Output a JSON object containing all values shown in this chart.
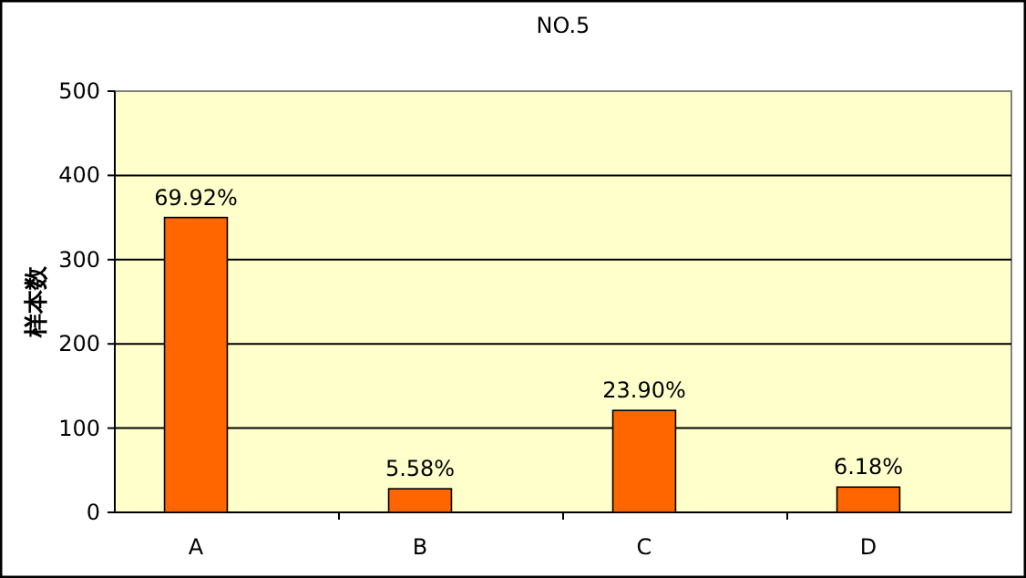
{
  "chart_data": {
    "type": "bar",
    "title": "NO.5",
    "ylabel": "样本数",
    "categories": [
      "A",
      "B",
      "C",
      "D"
    ],
    "values": [
      350,
      28,
      121,
      30
    ],
    "annotations": [
      {
        "text": "69.92%",
        "x": "A",
        "y": 350
      },
      {
        "text": "5.58%",
        "x": "B",
        "y": 28
      },
      {
        "text": "23.90%",
        "x": "C",
        "y": 121
      },
      {
        "text": "6.18%",
        "x": "D",
        "y": 30
      }
    ],
    "color": "#ff6600",
    "ylim": [
      0,
      500
    ],
    "yticks": [
      0,
      100,
      200,
      300,
      400,
      500
    ],
    "grid": "y"
  }
}
